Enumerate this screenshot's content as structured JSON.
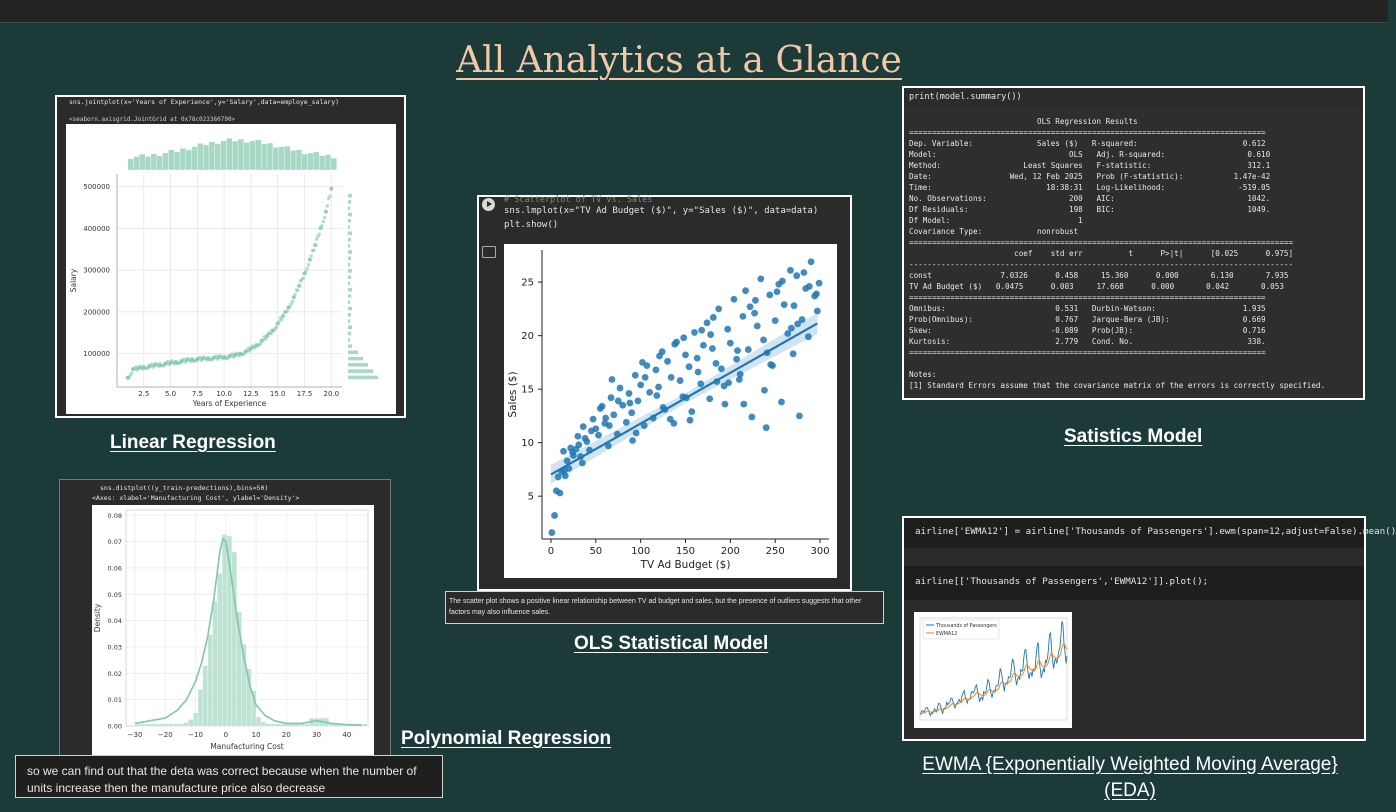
{
  "page": {
    "title": "All Analytics at a Glance"
  },
  "captions": {
    "linear": "Linear Regression",
    "polynomial": "Polynomial Regression",
    "ols": "OLS Statistical Model",
    "statistics": "Satistics Model",
    "ewma_line1": "EWMA {Exponentially Weighted Moving Average}",
    "ewma_line2": "(EDA)"
  },
  "linear_panel": {
    "code": "sns.jointplot(x='Years of Experience',y='Salary',data=employe_salary)",
    "output": "<seaborn.axisgrid.JointGrid at 0x78c023360790>",
    "chart_data": {
      "type": "scatter",
      "xlabel": "Years of Experience",
      "ylabel": "Salary",
      "xticks": [
        "2.5",
        "5.0",
        "7.5",
        "10.0",
        "12.5",
        "15.0",
        "17.5",
        "20.0"
      ],
      "yticks": [
        "100000",
        "200000",
        "300000",
        "400000",
        "500000"
      ],
      "xlim": [
        0,
        21
      ],
      "ylim": [
        20000,
        530000
      ],
      "color": "#7fc8a9",
      "x": [
        1,
        1.5,
        2,
        2.5,
        3,
        3.5,
        4,
        4.5,
        5,
        5.5,
        6,
        6.5,
        7,
        7.5,
        8,
        8.5,
        9,
        9.5,
        10,
        10.5,
        11,
        11.5,
        12,
        12.5,
        13,
        13.5,
        14,
        14.5,
        15,
        15.5,
        16,
        16.5,
        17,
        17.5,
        18,
        18.5,
        19,
        19.5,
        20
      ],
      "y": [
        42000,
        63000,
        65000,
        68000,
        70000,
        72000,
        74000,
        76000,
        78000,
        80000,
        82000,
        84000,
        86000,
        87000,
        88000,
        89000,
        90000,
        91000,
        92000,
        94000,
        96000,
        100000,
        105000,
        112000,
        120000,
        130000,
        142000,
        155000,
        172000,
        190000,
        210000,
        235000,
        262000,
        292000,
        325000,
        360000,
        400000,
        440000,
        495000
      ]
    }
  },
  "poly_panel": {
    "code": "sns.distplot((y_train-predections),bins=50)",
    "output": "<Axes: xlabel='Manufacturing Cost', ylabel='Density'>",
    "note": "so we can find out that the deta was correct because when the number of units increase then the manufacture price also decrease",
    "chart_data": {
      "type": "area",
      "xlabel": "Manufacturing Cost",
      "ylabel": "Density",
      "xticks": [
        "−30",
        "−20",
        "−10",
        "0",
        "10",
        "20",
        "30",
        "40"
      ],
      "xtick_values": [
        -30,
        -20,
        -10,
        0,
        10,
        20,
        30,
        40
      ],
      "yticks": [
        "0.00",
        "0.01",
        "0.02",
        "0.03",
        "0.04",
        "0.05",
        "0.06",
        "0.07",
        "0.08"
      ],
      "xlim": [
        -33,
        47
      ],
      "ylim": [
        0,
        0.082
      ],
      "color": "#7fc8a9",
      "x": [
        -30,
        -25,
        -20,
        -16,
        -13,
        -10,
        -8,
        -6,
        -4,
        -3,
        -2,
        -1,
        0,
        1,
        2,
        3,
        4,
        6,
        8,
        10,
        13,
        16,
        20,
        25,
        30,
        35,
        40,
        45
      ],
      "y": [
        0.001,
        0.002,
        0.003,
        0.006,
        0.01,
        0.017,
        0.024,
        0.034,
        0.048,
        0.057,
        0.066,
        0.071,
        0.07,
        0.063,
        0.055,
        0.047,
        0.039,
        0.026,
        0.015,
        0.008,
        0.004,
        0.002,
        0.001,
        0.001,
        0.002,
        0.001,
        0.0005,
        0.0003
      ]
    }
  },
  "ols_panel": {
    "code_comment": "# Scatterplot of TV vs. Sales",
    "code_line1": "sns.lmplot(x=\"TV Ad Budget ($)\", y=\"Sales ($)\", data=data)",
    "code_line2": "plt.show()",
    "note": "The scatter plot shows a positive linear relationship between TV ad budget and sales, but the presence of outliers suggests that other factors may also influence sales.",
    "chart_data": {
      "type": "scatter",
      "xlabel": "TV Ad Budget ($)",
      "ylabel": "Sales ($)",
      "xticks": [
        "0",
        "50",
        "100",
        "150",
        "200",
        "250",
        "300"
      ],
      "xtick_values": [
        0,
        50,
        100,
        150,
        200,
        250,
        300
      ],
      "yticks": [
        "5",
        "10",
        "15",
        "20",
        "25"
      ],
      "ytick_values": [
        5,
        10,
        15,
        20,
        25
      ],
      "xlim": [
        -10,
        310
      ],
      "ylim": [
        1,
        28
      ],
      "color": "#1f77b4",
      "regression": {
        "intercept": 7.0326,
        "slope": 0.0475
      },
      "x": [
        1,
        4,
        6,
        8,
        10,
        12,
        14,
        16,
        18,
        20,
        22,
        25,
        28,
        30,
        33,
        36,
        40,
        43,
        47,
        50,
        53,
        57,
        60,
        64,
        67,
        70,
        74,
        77,
        80,
        84,
        87,
        90,
        94,
        97,
        100,
        104,
        107,
        110,
        114,
        117,
        120,
        124,
        127,
        130,
        134,
        137,
        140,
        144,
        147,
        150,
        154,
        157,
        160,
        164,
        167,
        170,
        174,
        177,
        180,
        184,
        187,
        190,
        194,
        197,
        200,
        204,
        207,
        210,
        214,
        217,
        220,
        224,
        227,
        230,
        234,
        237,
        240,
        244,
        247,
        250,
        254,
        257,
        260,
        264,
        267,
        270,
        274,
        277,
        280,
        284,
        287,
        290,
        294,
        297,
        24,
        38,
        55,
        68,
        88,
        102,
        118,
        133,
        148,
        163,
        178,
        193,
        208,
        222,
        238,
        252,
        268,
        282,
        296,
        45,
        75,
        105,
        138,
        168,
        198,
        228,
        258,
        288,
        31,
        61,
        91,
        121,
        151,
        181,
        211,
        241,
        271,
        15,
        35,
        65,
        95,
        125,
        155,
        185,
        215,
        245,
        275,
        299
      ],
      "y": [
        1.6,
        3.2,
        5.5,
        6.8,
        5.3,
        7.3,
        9.2,
        6.9,
        8.3,
        7.6,
        9.5,
        8.8,
        9.4,
        10.6,
        8.7,
        11.5,
        10.1,
        9.3,
        12.2,
        11.3,
        10.7,
        13.4,
        11.8,
        9.7,
        14.2,
        12.6,
        10.8,
        15.1,
        13.5,
        11.9,
        14.6,
        12.8,
        16.3,
        13.9,
        15.4,
        11.6,
        17.2,
        14.7,
        12.3,
        16.8,
        15.2,
        18.5,
        13.1,
        17.6,
        16.1,
        11.8,
        19.4,
        15.8,
        14.3,
        18.2,
        17.1,
        12.9,
        20.3,
        16.6,
        15.5,
        19.1,
        21.2,
        14.1,
        18.8,
        17.4,
        22.5,
        16.9,
        13.6,
        20.6,
        19.3,
        23.4,
        17.8,
        15.9,
        21.8,
        24.2,
        18.7,
        12.4,
        22.1,
        20.9,
        25.3,
        19.6,
        11.4,
        23.8,
        17.2,
        21.4,
        24.8,
        13.8,
        22.9,
        20.2,
        26.1,
        18.3,
        25.6,
        12.5,
        21.5,
        24.4,
        19.9,
        26.9,
        23.7,
        22.3,
        9.1,
        10.4,
        13.2,
        15.9,
        13.7,
        17.5,
        14.4,
        12.2,
        19.8,
        17.9,
        20.1,
        15.3,
        18.6,
        22.7,
        14.9,
        24.1,
        20.7,
        25.9,
        23.9,
        11.1,
        13.9,
        16.1,
        19.2,
        20.5,
        15.6,
        23.3,
        25.1,
        24.6,
        9.8,
        12.3,
        10.2,
        18.1,
        14.2,
        21.7,
        16.4,
        18.4,
        22.8,
        7.4,
        8.1,
        11.6,
        10.9,
        13.3,
        12.1,
        15.7,
        13.6,
        17.3,
        21.1,
        24.9
      ]
    }
  },
  "stats_panel": {
    "code": "print(model.summary())",
    "lines": [
      "                            OLS Regression Results                            ",
      "==============================================================================",
      "Dep. Variable:              Sales ($)   R-squared:                       0.612",
      "Model:                             OLS   Adj. R-squared:                  0.610",
      "Method:                  Least Squares   F-statistic:                     312.1",
      "Date:                 Wed, 12 Feb 2025   Prob (F-statistic):           1.47e-42",
      "Time:                         18:38:31   Log-Likelihood:                -519.05",
      "No. Observations:                  200   AIC:                             1042.",
      "Df Residuals:                      198   BIC:                             1049.",
      "Df Model:                            1                                         ",
      "Covariance Type:            nonrobust                                         ",
      "====================================================================================",
      "                       coef    std err          t      P>|t|      [0.025      0.975]",
      "------------------------------------------------------------------------------------",
      "const               7.0326      0.458     15.360      0.000       6.130       7.935",
      "TV Ad Budget ($)   0.0475      0.003     17.668      0.000       0.042       0.053",
      "==============================================================================",
      "Omnibus:                        0.531   Durbin-Watson:                   1.935",
      "Prob(Omnibus):                  0.767   Jarque-Bera (JB):                0.669",
      "Skew:                          -0.089   Prob(JB):                        0.716",
      "Kurtosis:                       2.779   Cond. No.                         338.",
      "==============================================================================",
      "",
      "Notes:",
      "[1] Standard Errors assume that the covariance matrix of the errors is correctly specified."
    ]
  },
  "ewma_panel": {
    "code_line1": "airline['EWMA12'] = airline['Thousands of Passengers'].ewm(span=12,adjust=False).mean()",
    "code_line2": "airline[['Thousands of Passengers','EWMA12']].plot();",
    "chart_data": {
      "type": "line",
      "legend": [
        "Thousands of Passengers",
        "EWMA12"
      ],
      "colors": [
        "#1f77b4",
        "#ff7f0e"
      ],
      "ylim": [
        80,
        640
      ],
      "passengers": [
        112,
        118,
        132,
        129,
        121,
        135,
        148,
        148,
        136,
        119,
        104,
        118,
        115,
        126,
        141,
        135,
        125,
        149,
        170,
        170,
        158,
        133,
        114,
        140,
        145,
        150,
        178,
        163,
        172,
        178,
        199,
        199,
        184,
        162,
        146,
        166,
        171,
        180,
        193,
        181,
        183,
        218,
        230,
        242,
        209,
        191,
        172,
        194,
        196,
        196,
        236,
        235,
        229,
        243,
        264,
        272,
        237,
        211,
        180,
        201,
        204,
        188,
        235,
        227,
        234,
        264,
        302,
        293,
        259,
        229,
        203,
        229,
        242,
        233,
        267,
        269,
        270,
        315,
        364,
        347,
        312,
        274,
        237,
        278,
        284,
        277,
        317,
        313,
        318,
        374,
        413,
        405,
        355,
        306,
        271,
        306,
        315,
        301,
        356,
        348,
        355,
        422,
        465,
        467,
        404,
        347,
        305,
        336,
        340,
        318,
        362,
        348,
        363,
        435,
        491,
        505,
        404,
        359,
        310,
        337,
        360,
        342,
        406,
        396,
        420,
        472,
        548,
        559,
        463,
        407,
        362,
        405,
        417,
        391,
        419,
        461,
        472,
        535,
        622,
        606,
        508,
        461,
        390,
        432
      ]
    }
  }
}
